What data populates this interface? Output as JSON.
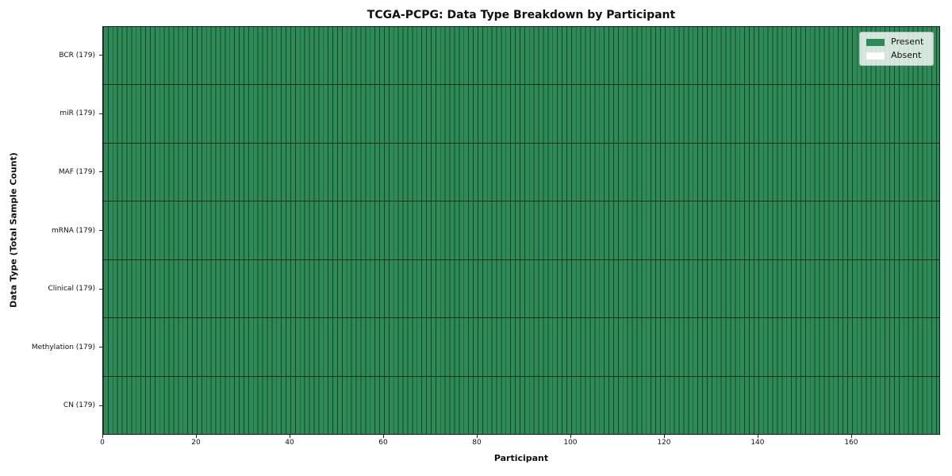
{
  "chart_data": {
    "type": "heatmap",
    "title": "TCGA-PCPG: Data Type Breakdown by Participant",
    "xlabel": "Participant",
    "ylabel": "Data Type (Total Sample Count)",
    "x_range": [
      0,
      179
    ],
    "x_ticks": [
      0,
      20,
      40,
      60,
      80,
      100,
      120,
      140,
      160
    ],
    "n_participants": 179,
    "rows": [
      {
        "label": "BCR (179)",
        "data_type": "BCR",
        "total_samples": 179,
        "present": 179,
        "absent": 0
      },
      {
        "label": "miR (179)",
        "data_type": "miR",
        "total_samples": 179,
        "present": 179,
        "absent": 0
      },
      {
        "label": "MAF (179)",
        "data_type": "MAF",
        "total_samples": 179,
        "present": 179,
        "absent": 0
      },
      {
        "label": "mRNA (179)",
        "data_type": "mRNA",
        "total_samples": 179,
        "present": 179,
        "absent": 0
      },
      {
        "label": "Clinical (179)",
        "data_type": "Clinical",
        "total_samples": 179,
        "present": 179,
        "absent": 0
      },
      {
        "label": "Methylation (179)",
        "data_type": "Methylation",
        "total_samples": 179,
        "present": 179,
        "absent": 0
      },
      {
        "label": "CN (179)",
        "data_type": "CN",
        "total_samples": 179,
        "present": 179,
        "absent": 0
      }
    ],
    "legend": {
      "position": "upper right",
      "entries": [
        {
          "label": "Present",
          "color": "#2e8b57"
        },
        {
          "label": "Absent",
          "color": "#ffffff"
        }
      ]
    },
    "colors": {
      "present": "#2e8b57",
      "absent": "#ffffff",
      "cell_edge": "rgba(0,0,0,0.5)",
      "background": "#ffffff"
    },
    "grid": false
  }
}
